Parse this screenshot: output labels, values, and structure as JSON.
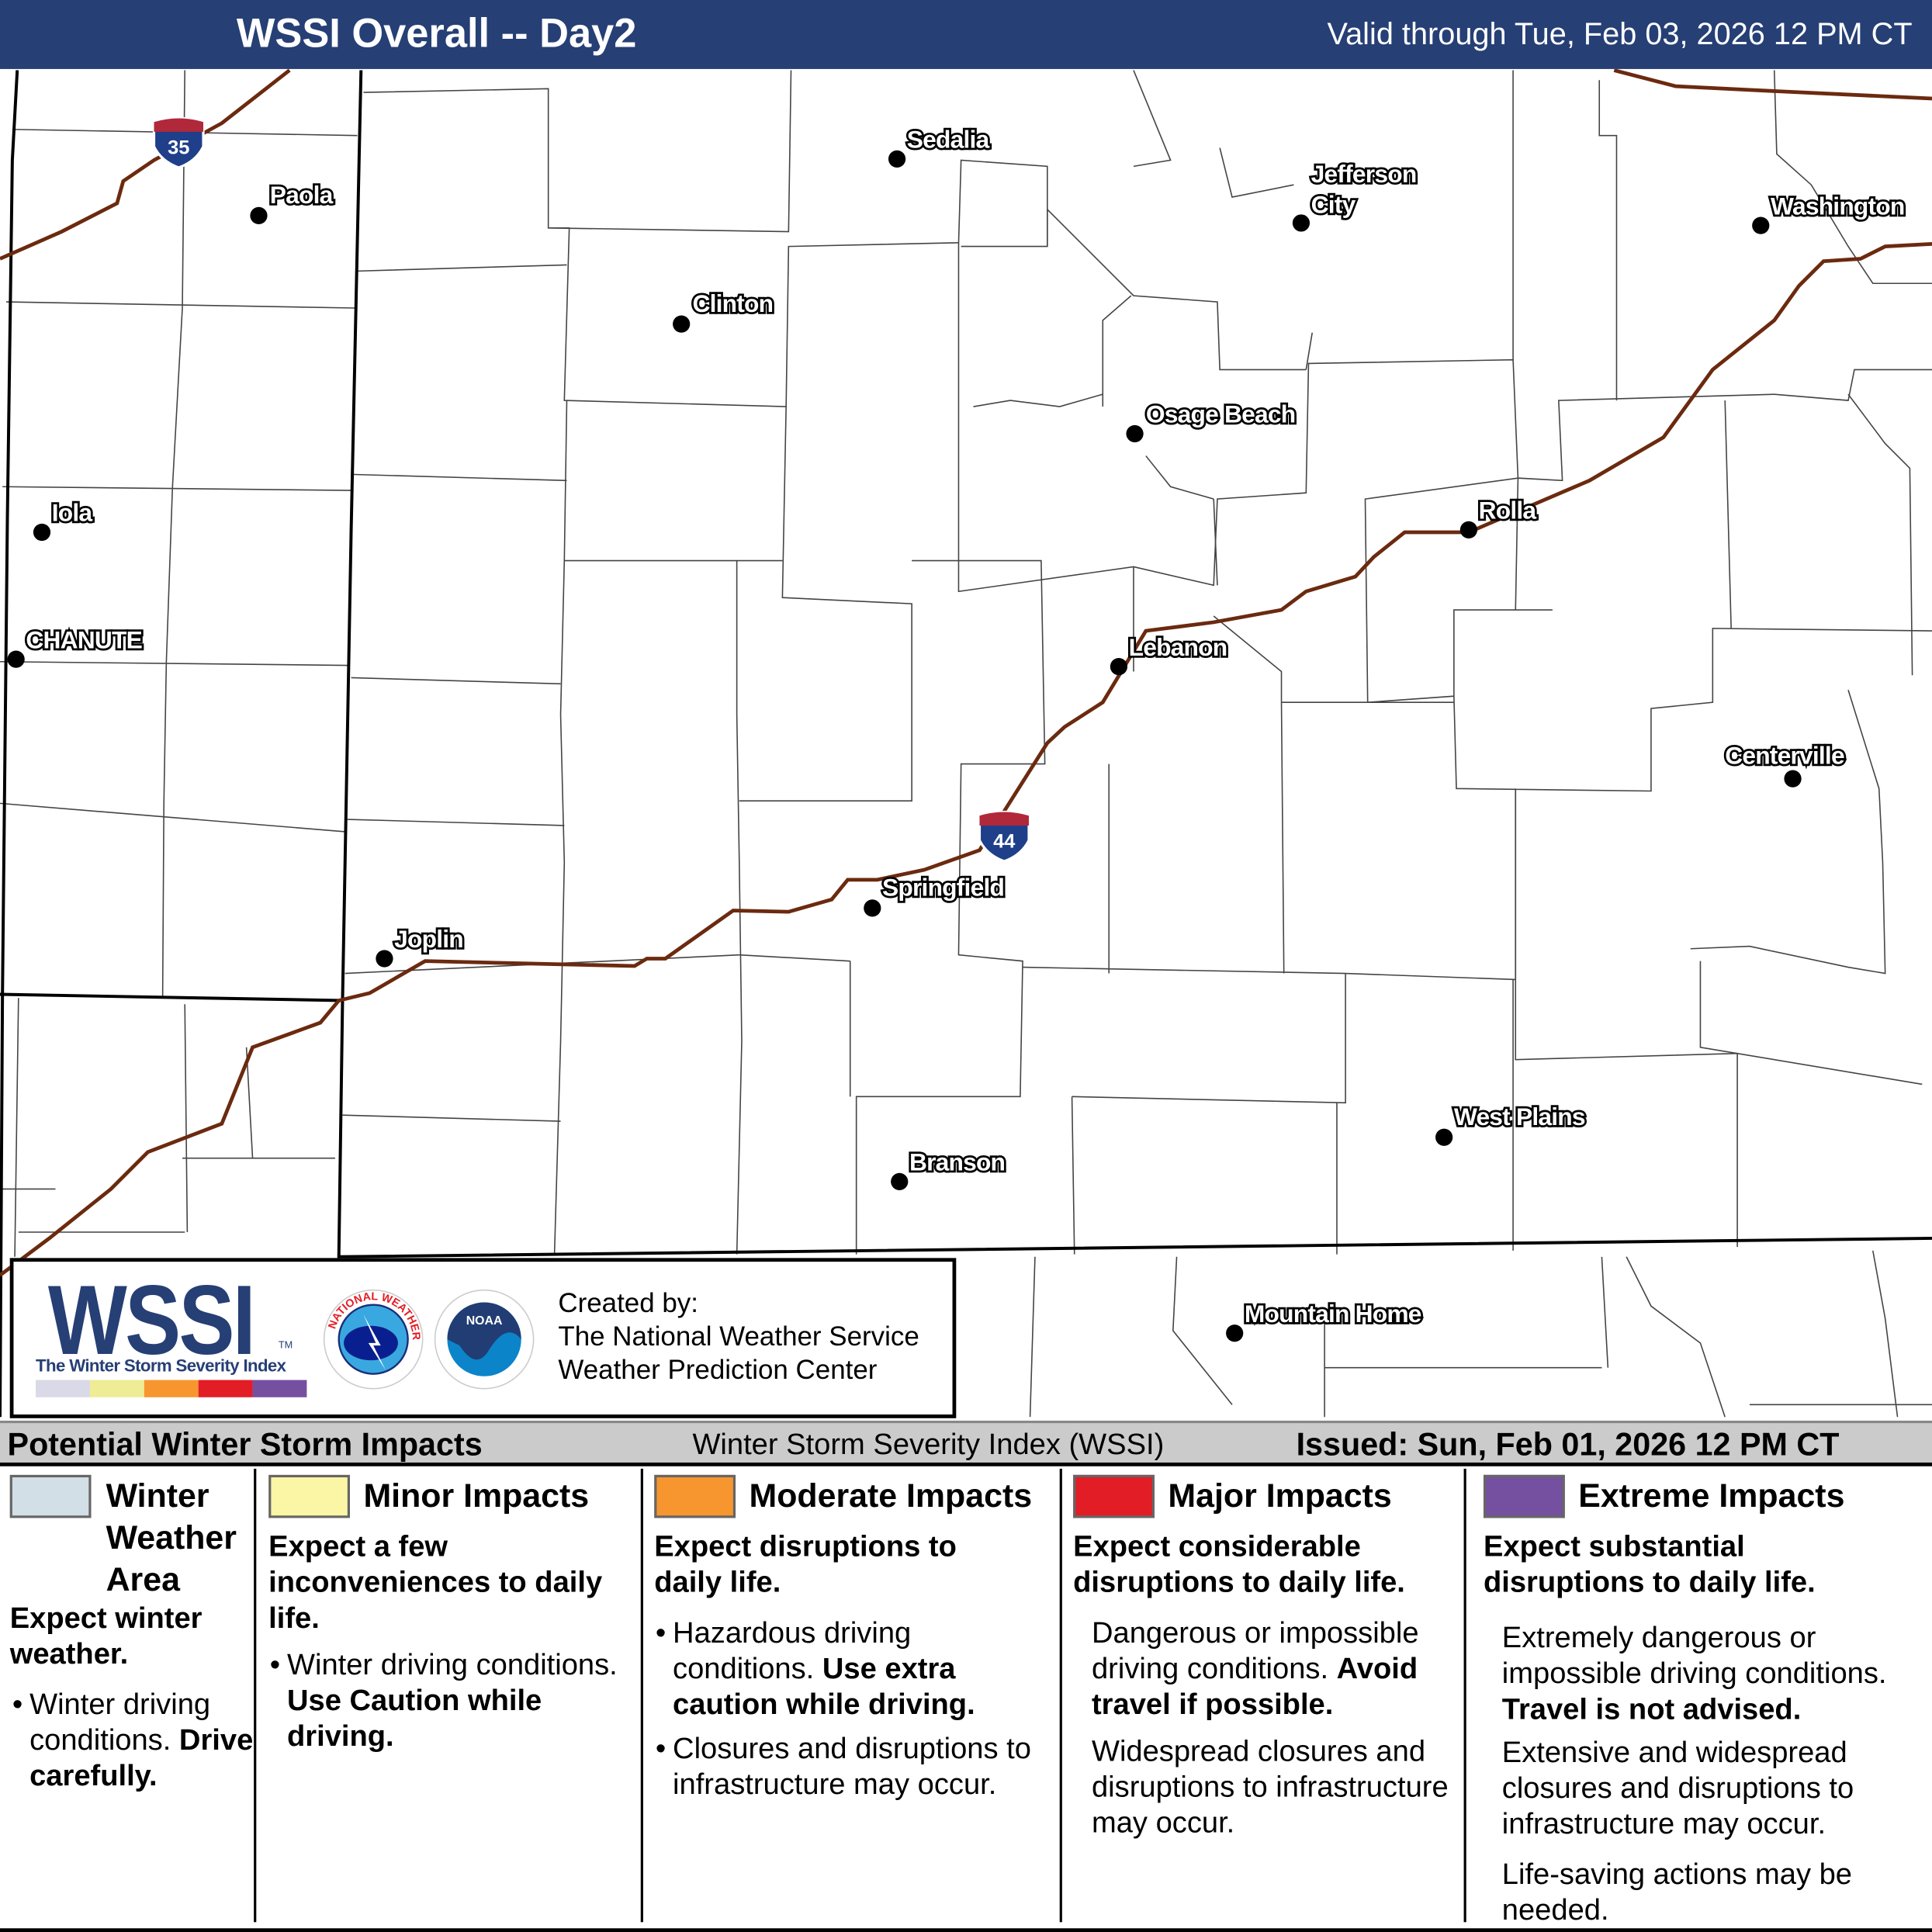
{
  "header": {
    "title": "WSSI Overall -- Day2",
    "valid": "Valid through Tue, Feb 03, 2026 12 PM CT",
    "bg_color": "#263f75"
  },
  "map": {
    "interstates": [
      {
        "number": "35"
      },
      {
        "number": "44"
      }
    ],
    "cities": [
      "Sedalia",
      "Paola",
      "Jefferson",
      "City",
      "Washington",
      "Clinton",
      "Osage Beach",
      "Iola",
      "Rolla",
      "CHANUTE",
      "Lebanon",
      "Centerville",
      "Springfield",
      "Joplin",
      "West Plains",
      "Branson",
      "Mountain Home"
    ],
    "interstate_color": "#6b2a0f"
  },
  "logo": {
    "wssi": "WSSI",
    "tm": "TM",
    "subtitle": "The Winter Storm Severity Index",
    "scale_colors": [
      "#d9d9e8",
      "#eeec94",
      "#f7962f",
      "#e31d25",
      "#7650a0"
    ],
    "nws_text": "NATIONAL WEATHER SERVICE",
    "noaa_text": "NOAA",
    "noaa_ring": "NATIONAL OCEANIC AND ATMOSPHERIC ADMINISTRATION U.S. DEPARTMENT OF COMMERCE",
    "created_by": "Created by:",
    "org1": "The National Weather Service",
    "org2": "Weather Prediction Center"
  },
  "legend_bar": {
    "left": "Potential Winter Storm Impacts",
    "middle": "Winter Storm Severity Index (WSSI)",
    "right": "Issued: Sun, Feb 01, 2026 12 PM CT"
  },
  "legend": [
    {
      "title1": "Winter",
      "title2": "Weather",
      "title3": "Area",
      "color": "#d3dfe6",
      "expect": "Expect winter weather.",
      "b1_normal": "Winter driving conditions.",
      "b1_bold": "Drive carefully."
    },
    {
      "title": "Minor Impacts",
      "color": "#faf6a6",
      "expect": "Expect a few inconveniences to daily life.",
      "b1_normal": "Winter driving conditions.",
      "b1_bold": "Use Caution while driving."
    },
    {
      "title": "Moderate Impacts",
      "color": "#f7962f",
      "expect": "Expect disruptions to daily life.",
      "b1_normal": "Hazardous driving conditions.",
      "b1_bold": "Use extra caution while driving.",
      "b2_normal": "Closures and disruptions to infrastructure may occur."
    },
    {
      "title": "Major Impacts",
      "color": "#e31d25",
      "expect": "Expect considerable disruptions to daily life.",
      "p1_normal": "Dangerous or impossible driving conditions.",
      "p1_bold": "Avoid travel if possible.",
      "p2_normal": "Widespread closures and disruptions to infrastructure may occur."
    },
    {
      "title": "Extreme Impacts",
      "color": "#7650a0",
      "expect": "Expect substantial disruptions to daily life.",
      "p1_normal": "Extremely dangerous or impossible driving conditions.",
      "p1_bold": "Travel is not advised.",
      "p2_normal": "Extensive and widespread closures and disruptions to infrastructure may occur.",
      "p3_normal": "Life-saving actions may be needed."
    }
  ]
}
